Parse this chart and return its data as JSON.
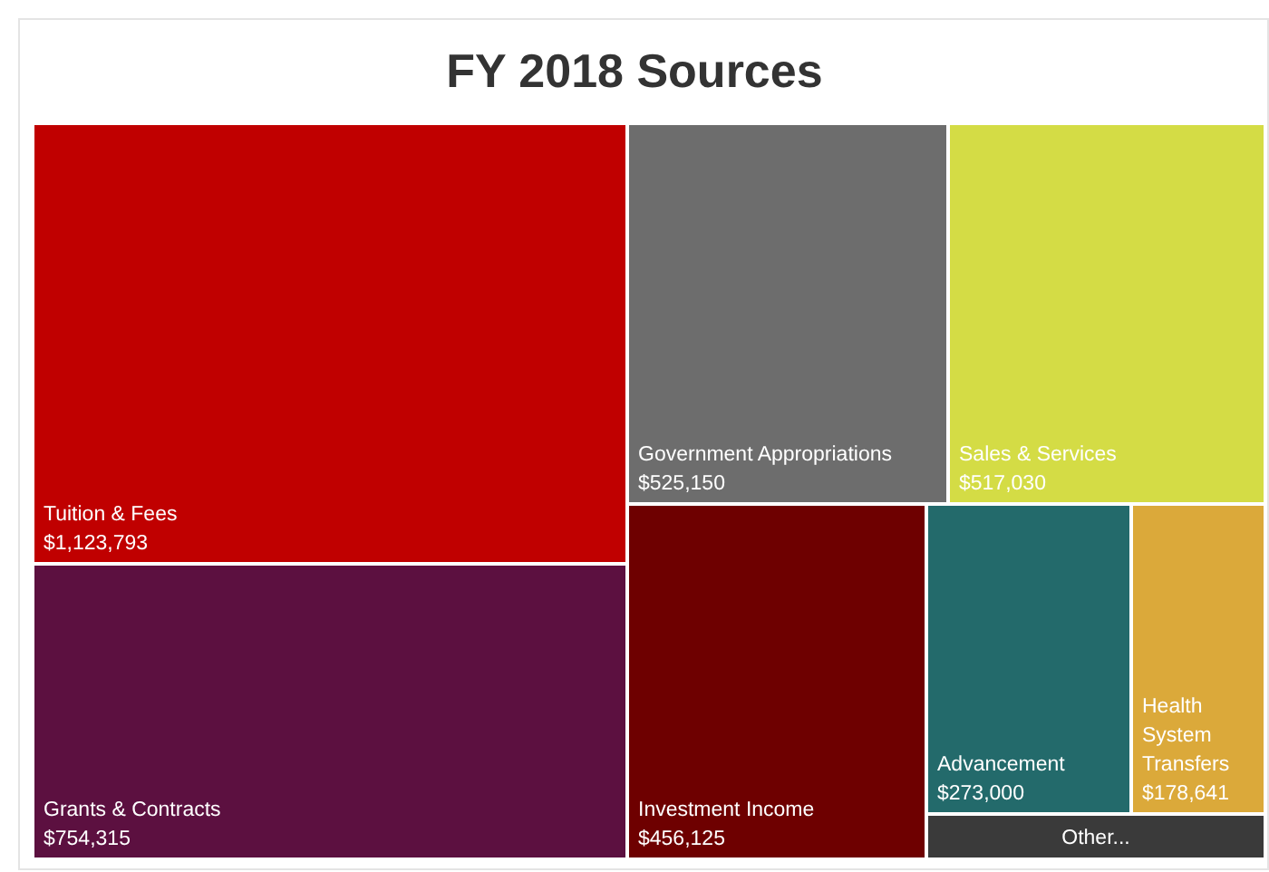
{
  "chart_data": {
    "type": "other",
    "title": "FY 2018 Sources",
    "categories": [
      "Tuition & Fees",
      "Grants & Contracts",
      "Government Appropriations",
      "Sales & Services",
      "Investment Income",
      "Advancement",
      "Health System Transfers",
      "Other..."
    ],
    "values": [
      1123793,
      754315,
      525150,
      517030,
      456125,
      273000,
      178641,
      null
    ],
    "value_labels": [
      "$1,123,793",
      "$754,315",
      "$525,150",
      "$517,030",
      "$456,125",
      "$273,000",
      "$178,641",
      null
    ],
    "colors": [
      "#c00000",
      "#5c1040",
      "#6d6d6d",
      "#d4dc45",
      "#6e0000",
      "#236a6b",
      "#dba93a",
      "#3a3a3a"
    ]
  }
}
